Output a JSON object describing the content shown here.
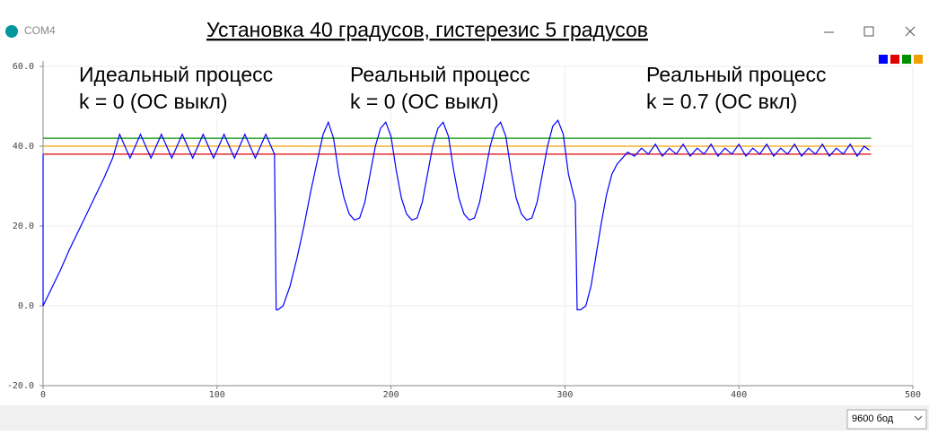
{
  "window": {
    "title": "COM4"
  },
  "baud_select": "9600 бод",
  "chart_data": {
    "type": "line",
    "title": "Установка 40 градусов, гистерезис 5 градусов",
    "annotations": [
      "Идеальный процесс",
      "k = 0 (ОС выкл)",
      "Реальный процесс",
      "k = 0 (ОС выкл)",
      "Реальный процесс",
      "k = 0.7 (ОС вкл)"
    ],
    "xlim": [
      0,
      500
    ],
    "xticks": [
      0,
      100,
      200,
      300,
      400,
      500
    ],
    "ylim": [
      -20,
      60
    ],
    "yticks": [
      {
        "value": -20,
        "label": "-20.0"
      },
      {
        "value": 0,
        "label": "0.0"
      },
      {
        "value": 20,
        "label": "20.0"
      },
      {
        "value": 40,
        "label": "40.0"
      },
      {
        "value": 60,
        "label": "60.0"
      }
    ],
    "grid": true,
    "series": [
      {
        "color": "#0000ff",
        "x": [
          0,
          0,
          5,
          10,
          15,
          20,
          25,
          30,
          35,
          40,
          44,
          50,
          56,
          62,
          68,
          74,
          80,
          86,
          92,
          98,
          104,
          110,
          116,
          122,
          128,
          133,
          134,
          135,
          138,
          142,
          146,
          150,
          154,
          158,
          161,
          164,
          167,
          170,
          173,
          176,
          179,
          182,
          185,
          188,
          191,
          194,
          197,
          200,
          203,
          206,
          209,
          212,
          215,
          218,
          221,
          224,
          227,
          230,
          233,
          236,
          239,
          242,
          245,
          248,
          251,
          254,
          257,
          260,
          263,
          266,
          269,
          272,
          275,
          278,
          281,
          284,
          287,
          290,
          293,
          296,
          299,
          302,
          306,
          307,
          309,
          312,
          315,
          318,
          321,
          324,
          327,
          330,
          333,
          336,
          340,
          344,
          348,
          352,
          356,
          360,
          364,
          368,
          372,
          376,
          380,
          384,
          388,
          392,
          396,
          400,
          404,
          408,
          412,
          416,
          420,
          424,
          428,
          432,
          436,
          440,
          444,
          448,
          452,
          456,
          460,
          464,
          468,
          472,
          475
        ],
        "values": [
          38,
          0,
          4.5,
          9,
          14,
          18.5,
          23,
          27.5,
          32,
          37,
          43,
          37,
          43,
          37,
          43,
          37,
          43,
          37,
          43,
          37,
          43,
          37,
          43,
          37,
          43,
          38,
          -1,
          -1,
          0,
          5,
          12,
          20,
          29,
          37,
          43,
          46,
          42,
          33,
          27,
          23,
          21.5,
          22,
          26,
          33,
          40,
          44.5,
          46,
          42.5,
          34,
          27,
          23,
          21.5,
          22,
          26,
          33,
          40,
          44.5,
          46,
          42.5,
          34,
          27,
          23,
          21.5,
          22,
          26,
          33,
          40,
          44.5,
          46,
          42.5,
          34,
          27,
          23,
          21.5,
          22,
          26,
          33,
          40,
          45,
          46.5,
          43,
          33,
          26,
          -1,
          -1,
          0,
          5,
          13,
          21,
          28,
          33,
          35.5,
          37,
          38.5,
          37.5,
          39.5,
          38,
          40.5,
          37.5,
          39.5,
          38,
          40.5,
          37.5,
          39.5,
          38,
          40.5,
          37.5,
          39.5,
          38,
          40.5,
          37.5,
          39.5,
          38,
          40.5,
          37.5,
          39.5,
          38,
          40.5,
          37.5,
          39.5,
          38,
          40.5,
          37.5,
          39.5,
          38,
          40.5,
          37.5,
          40,
          39
        ]
      },
      {
        "color": "#e00000",
        "x": [
          0,
          476
        ],
        "values": [
          38,
          38
        ]
      },
      {
        "color": "#009000",
        "x": [
          0,
          476
        ],
        "values": [
          42,
          42
        ]
      },
      {
        "color": "#f0a000",
        "x": [
          0,
          476
        ],
        "values": [
          40,
          40
        ]
      }
    ]
  }
}
